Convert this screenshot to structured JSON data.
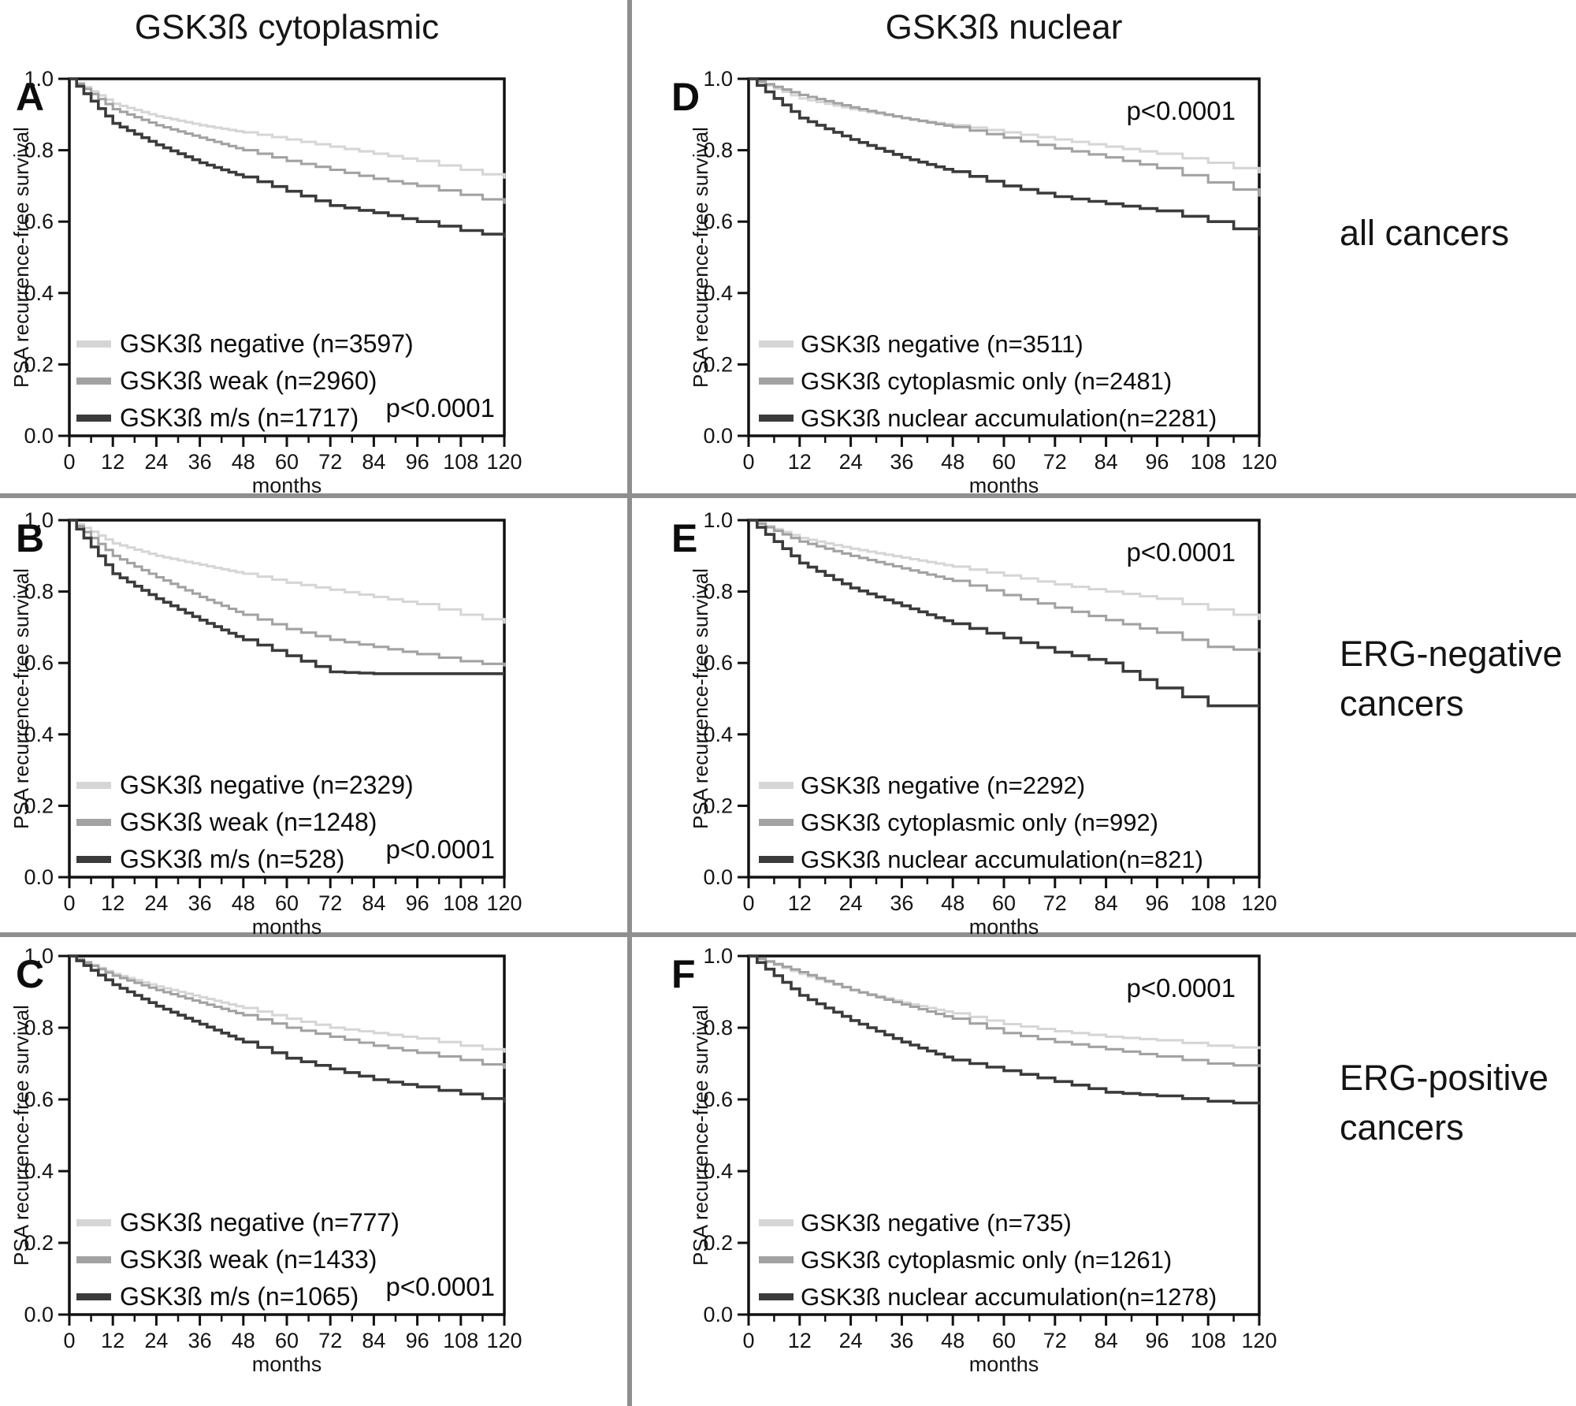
{
  "figure": {
    "column_titles": [
      "GSK3ß cytoplasmic",
      "GSK3ß nuclear"
    ],
    "row_labels": [
      "all cancers",
      "ERG-negative\ncancers",
      "ERG-positive\ncancers"
    ]
  },
  "axes": {
    "ylabel": "PSA recurrence-free survival",
    "xlabel": "months",
    "yticks": [
      "1.0",
      "0.8",
      "0.6",
      "0.4",
      "0.2",
      "0.0"
    ],
    "xticks": [
      "0",
      "12",
      "24",
      "36",
      "48",
      "60",
      "72",
      "84",
      "96",
      "108",
      "120"
    ]
  },
  "colors": {
    "negative": "#d6d6d6",
    "intermediate": "#a2a2a2",
    "dark": "#3b3b3b",
    "divider": "#8f8f8f",
    "axis": "#111111"
  },
  "chart_data": [
    {
      "panel": "A",
      "type": "line",
      "column": "GSK3ß cytoplasmic",
      "row": "all cancers",
      "p_value": "p<0.0001",
      "p_value_position": "bottom-right",
      "xlabel": "months",
      "ylabel": "PSA recurrence-free survival",
      "x": [
        0,
        12,
        24,
        36,
        48,
        60,
        72,
        84,
        96,
        108,
        120
      ],
      "xlim": [
        0,
        120
      ],
      "ylim": [
        0.0,
        1.0
      ],
      "series": [
        {
          "name": "GSK3ß negative (n=3597)",
          "color": "#d6d6d6",
          "values": [
            1.0,
            0.93,
            0.895,
            0.87,
            0.85,
            0.83,
            0.81,
            0.79,
            0.77,
            0.745,
            0.72
          ]
        },
        {
          "name": "GSK3ß weak (n=2960)",
          "color": "#a2a2a2",
          "values": [
            1.0,
            0.915,
            0.87,
            0.835,
            0.8,
            0.77,
            0.745,
            0.72,
            0.7,
            0.675,
            0.65
          ]
        },
        {
          "name": "GSK3ß m/s (n=1717)",
          "color": "#3b3b3b",
          "values": [
            1.0,
            0.875,
            0.815,
            0.765,
            0.725,
            0.685,
            0.645,
            0.625,
            0.6,
            0.575,
            0.555
          ]
        }
      ]
    },
    {
      "panel": "B",
      "type": "line",
      "column": "GSK3ß cytoplasmic",
      "row": "ERG-negative cancers",
      "p_value": "p<0.0001",
      "p_value_position": "bottom-right",
      "xlabel": "months",
      "ylabel": "PSA recurrence-free survival",
      "x": [
        0,
        12,
        24,
        36,
        48,
        60,
        72,
        84,
        96,
        108,
        120
      ],
      "xlim": [
        0,
        120
      ],
      "ylim": [
        0.0,
        1.0
      ],
      "series": [
        {
          "name": "GSK3ß negative (n=2329)",
          "color": "#d6d6d6",
          "values": [
            1.0,
            0.935,
            0.9,
            0.875,
            0.85,
            0.825,
            0.805,
            0.785,
            0.765,
            0.735,
            0.71
          ]
        },
        {
          "name": "GSK3ß weak (n=1248)",
          "color": "#a2a2a2",
          "values": [
            1.0,
            0.9,
            0.84,
            0.785,
            0.735,
            0.695,
            0.665,
            0.645,
            0.625,
            0.605,
            0.59
          ]
        },
        {
          "name": "GSK3ß m/s (n=528)",
          "color": "#3b3b3b",
          "values": [
            1.0,
            0.85,
            0.78,
            0.72,
            0.665,
            0.62,
            0.575,
            0.57,
            0.57,
            0.57,
            0.57
          ]
        }
      ]
    },
    {
      "panel": "C",
      "type": "line",
      "column": "GSK3ß cytoplasmic",
      "row": "ERG-positive cancers",
      "p_value": "p<0.0001",
      "p_value_position": "bottom-right",
      "xlabel": "months",
      "ylabel": "PSA recurrence-free survival",
      "x": [
        0,
        12,
        24,
        36,
        48,
        60,
        72,
        84,
        96,
        108,
        120
      ],
      "xlim": [
        0,
        120
      ],
      "ylim": [
        0.0,
        1.0
      ],
      "series": [
        {
          "name": "GSK3ß negative (n=777)",
          "color": "#d6d6d6",
          "values": [
            1.0,
            0.95,
            0.915,
            0.885,
            0.855,
            0.825,
            0.8,
            0.785,
            0.77,
            0.75,
            0.73
          ]
        },
        {
          "name": "GSK3ß weak (n=1433)",
          "color": "#a2a2a2",
          "values": [
            1.0,
            0.945,
            0.905,
            0.87,
            0.835,
            0.8,
            0.775,
            0.75,
            0.73,
            0.71,
            0.685
          ]
        },
        {
          "name": "GSK3ß m/s (n=1065)",
          "color": "#3b3b3b",
          "values": [
            1.0,
            0.92,
            0.86,
            0.81,
            0.76,
            0.715,
            0.685,
            0.655,
            0.635,
            0.615,
            0.59
          ]
        }
      ]
    },
    {
      "panel": "D",
      "type": "line",
      "column": "GSK3ß nuclear",
      "row": "all cancers",
      "p_value": "p<0.0001",
      "p_value_position": "top-right",
      "xlabel": "months",
      "ylabel": "PSA recurrence-free survival",
      "x": [
        0,
        12,
        24,
        36,
        48,
        60,
        72,
        84,
        96,
        108,
        120
      ],
      "xlim": [
        0,
        120
      ],
      "ylim": [
        0.0,
        1.0
      ],
      "series": [
        {
          "name": "GSK3ß negative (n=3511)",
          "color": "#d6d6d6",
          "values": [
            1.0,
            0.945,
            0.915,
            0.89,
            0.87,
            0.85,
            0.83,
            0.81,
            0.79,
            0.765,
            0.735
          ]
        },
        {
          "name": "GSK3ß cytoplasmic only (n=2481)",
          "color": "#a2a2a2",
          "values": [
            1.0,
            0.955,
            0.92,
            0.89,
            0.865,
            0.835,
            0.805,
            0.78,
            0.75,
            0.71,
            0.67
          ]
        },
        {
          "name": "GSK3ß nuclear accumulation(n=2281)",
          "color": "#3b3b3b",
          "values": [
            1.0,
            0.89,
            0.83,
            0.78,
            0.74,
            0.7,
            0.67,
            0.65,
            0.63,
            0.6,
            0.56
          ]
        }
      ]
    },
    {
      "panel": "E",
      "type": "line",
      "column": "GSK3ß nuclear",
      "row": "ERG-negative cancers",
      "p_value": "p<0.0001",
      "p_value_position": "top-right",
      "xlabel": "months",
      "ylabel": "PSA recurrence-free survival",
      "x": [
        0,
        12,
        24,
        36,
        48,
        60,
        72,
        84,
        96,
        108,
        120
      ],
      "xlim": [
        0,
        120
      ],
      "ylim": [
        0.0,
        1.0
      ],
      "series": [
        {
          "name": "GSK3ß negative (n=2292)",
          "color": "#d6d6d6",
          "values": [
            1.0,
            0.95,
            0.92,
            0.895,
            0.87,
            0.845,
            0.82,
            0.8,
            0.78,
            0.75,
            0.72
          ]
        },
        {
          "name": "GSK3ß cytoplasmic only (n=992)",
          "color": "#a2a2a2",
          "values": [
            1.0,
            0.94,
            0.9,
            0.865,
            0.83,
            0.79,
            0.755,
            0.72,
            0.685,
            0.645,
            0.63
          ]
        },
        {
          "name": "GSK3ß nuclear accumulation(n=821)",
          "color": "#3b3b3b",
          "values": [
            1.0,
            0.88,
            0.81,
            0.76,
            0.71,
            0.67,
            0.63,
            0.6,
            0.53,
            0.48,
            0.48
          ]
        }
      ]
    },
    {
      "panel": "F",
      "type": "line",
      "column": "GSK3ß nuclear",
      "row": "ERG-positive cancers",
      "p_value": "p<0.0001",
      "p_value_position": "top-right",
      "xlabel": "months",
      "ylabel": "PSA recurrence-free survival",
      "x": [
        0,
        12,
        24,
        36,
        48,
        60,
        72,
        84,
        96,
        108,
        120
      ],
      "xlim": [
        0,
        120
      ],
      "ylim": [
        0.0,
        1.0
      ],
      "series": [
        {
          "name": "GSK3ß negative (n=735)",
          "color": "#d6d6d6",
          "values": [
            1.0,
            0.95,
            0.905,
            0.87,
            0.84,
            0.81,
            0.79,
            0.775,
            0.765,
            0.75,
            0.74
          ]
        },
        {
          "name": "GSK3ß cytoplasmic only (n=1261)",
          "color": "#a2a2a2",
          "values": [
            1.0,
            0.955,
            0.905,
            0.865,
            0.825,
            0.785,
            0.76,
            0.74,
            0.72,
            0.7,
            0.69
          ]
        },
        {
          "name": "GSK3ß nuclear accumulation(n=1278)",
          "color": "#3b3b3b",
          "values": [
            1.0,
            0.89,
            0.82,
            0.76,
            0.71,
            0.68,
            0.65,
            0.62,
            0.61,
            0.595,
            0.585
          ]
        }
      ]
    }
  ]
}
